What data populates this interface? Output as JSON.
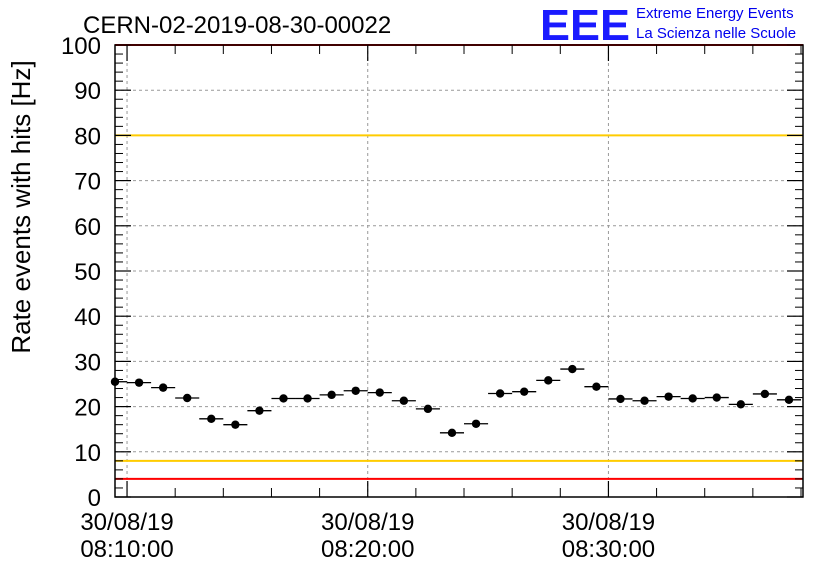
{
  "header": {
    "title": "CERN-02-2019-08-30-00022",
    "logo_text": "EEE",
    "logo_line1": "Extreme Energy Events",
    "logo_line2": "La Scienza nelle Scuole"
  },
  "colors": {
    "red_threshold": "#ff0000",
    "yellow_threshold": "#ffcc00",
    "logo_blue": "#1a1aff",
    "grid": "#999999"
  },
  "chart_data": {
    "type": "scatter",
    "title": "CERN-02-2019-08-30-00022",
    "xlabel": "",
    "ylabel": "Rate events with hits [Hz]",
    "x_unit": "time (dd/mm/yy hh:mm:ss)",
    "xlim": [
      "30/08/19 08:09:30",
      "30/08/19 08:38:05"
    ],
    "ylim": [
      0,
      100
    ],
    "grid": true,
    "y_ticks": [
      "0",
      "10",
      "20",
      "30",
      "40",
      "50",
      "60",
      "70",
      "80",
      "90",
      "100"
    ],
    "x_ticks": [
      {
        "time": "30/08/19 08:10:00",
        "line1": "30/08/19",
        "line2": "08:10:00"
      },
      {
        "time": "30/08/19 08:20:00",
        "line1": "30/08/19",
        "line2": "08:20:00"
      },
      {
        "time": "30/08/19 08:30:00",
        "line1": "30/08/19",
        "line2": "08:30:00"
      }
    ],
    "thresholds": [
      {
        "value": 100,
        "color": "red"
      },
      {
        "value": 80,
        "color": "yellow"
      },
      {
        "value": 8,
        "color": "yellow"
      },
      {
        "value": 4,
        "color": "red"
      }
    ],
    "series": [
      {
        "x": [
          "08:09:30",
          "08:10:30",
          "08:11:30",
          "08:12:30",
          "08:13:30",
          "08:14:30",
          "08:15:30",
          "08:16:30",
          "08:17:30",
          "08:18:30",
          "08:19:30",
          "08:20:30",
          "08:21:30",
          "08:22:30",
          "08:23:30",
          "08:24:30",
          "08:25:30",
          "08:26:30",
          "08:27:30",
          "08:28:30",
          "08:29:30",
          "08:30:30",
          "08:31:30",
          "08:32:30",
          "08:33:30",
          "08:34:30",
          "08:35:30",
          "08:36:30",
          "08:37:30"
        ],
        "y": [
          25.5,
          25.3,
          24.2,
          21.9,
          17.3,
          16.0,
          19.1,
          21.8,
          21.8,
          22.6,
          23.5,
          23.1,
          21.3,
          19.5,
          14.2,
          16.2,
          22.9,
          23.3,
          25.8,
          28.3,
          24.4,
          21.7,
          21.3,
          22.2,
          21.8,
          22.0,
          20.5,
          22.8,
          21.5
        ]
      }
    ]
  }
}
